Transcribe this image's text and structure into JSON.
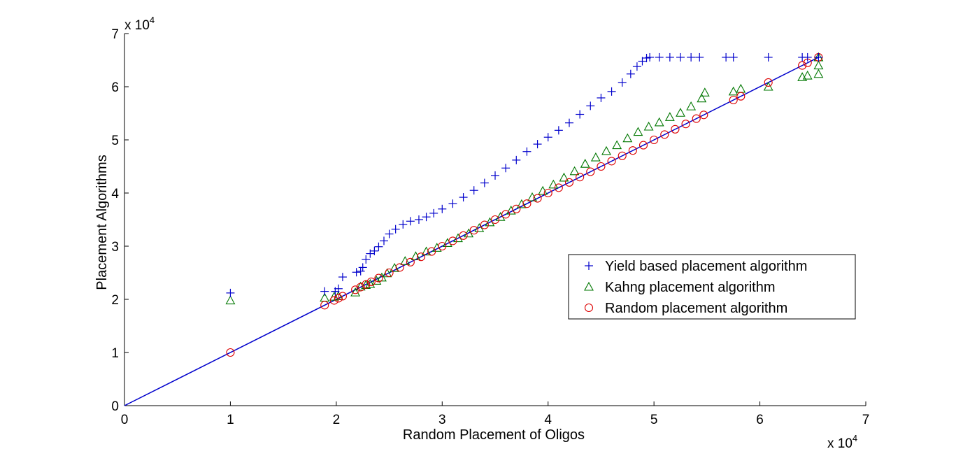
{
  "chart_data": {
    "type": "scatter",
    "title": "",
    "xlabel": "Random Placement of Oligos",
    "ylabel": "Placement Algorithms",
    "x_exponent_label": "x 10",
    "x_exponent_power": "4",
    "y_exponent_label": "x 10",
    "y_exponent_power": "4",
    "xlim": [
      0,
      70000
    ],
    "ylim": [
      0,
      70000
    ],
    "xticks": [
      0,
      10000,
      20000,
      30000,
      40000,
      50000,
      60000,
      70000
    ],
    "xtick_labels": [
      "0",
      "1",
      "2",
      "3",
      "4",
      "5",
      "6",
      "7"
    ],
    "yticks": [
      0,
      10000,
      20000,
      30000,
      40000,
      50000,
      60000,
      70000
    ],
    "ytick_labels": [
      "0",
      "1",
      "2",
      "3",
      "4",
      "5",
      "6",
      "7"
    ],
    "grid": false,
    "legend_position": "center-right",
    "reference_line": {
      "x": [
        0,
        65536
      ],
      "y": [
        0,
        65536
      ],
      "color": "#0000cc"
    },
    "series": [
      {
        "name": "Yield based placement algorithm",
        "marker": "plus",
        "color": "#0000cc",
        "points": [
          [
            10000,
            21200
          ],
          [
            18900,
            21500
          ],
          [
            19900,
            21500
          ],
          [
            20200,
            22000
          ],
          [
            20600,
            24200
          ],
          [
            21900,
            25100
          ],
          [
            22300,
            25300
          ],
          [
            22500,
            26000
          ],
          [
            22800,
            27500
          ],
          [
            23200,
            28600
          ],
          [
            23600,
            29100
          ],
          [
            24000,
            29900
          ],
          [
            24500,
            31000
          ],
          [
            25000,
            32300
          ],
          [
            25600,
            33200
          ],
          [
            26300,
            34100
          ],
          [
            27000,
            34700
          ],
          [
            27800,
            35000
          ],
          [
            28500,
            35500
          ],
          [
            29200,
            36200
          ],
          [
            30000,
            37000
          ],
          [
            31000,
            38000
          ],
          [
            32000,
            39200
          ],
          [
            33000,
            40500
          ],
          [
            34000,
            41900
          ],
          [
            35000,
            43300
          ],
          [
            36000,
            44700
          ],
          [
            37000,
            46200
          ],
          [
            38000,
            47800
          ],
          [
            39000,
            49200
          ],
          [
            40000,
            50500
          ],
          [
            41000,
            51800
          ],
          [
            42000,
            53200
          ],
          [
            43000,
            54800
          ],
          [
            44000,
            56400
          ],
          [
            45000,
            57900
          ],
          [
            46000,
            59100
          ],
          [
            47000,
            60800
          ],
          [
            47800,
            62400
          ],
          [
            48400,
            63800
          ],
          [
            48900,
            64800
          ],
          [
            49300,
            65400
          ],
          [
            49600,
            65536
          ],
          [
            50500,
            65536
          ],
          [
            51500,
            65536
          ],
          [
            52500,
            65536
          ],
          [
            53500,
            65536
          ],
          [
            54300,
            65536
          ],
          [
            56800,
            65536
          ],
          [
            57500,
            65536
          ],
          [
            60800,
            65536
          ],
          [
            64000,
            65536
          ],
          [
            64500,
            65536
          ],
          [
            65536,
            65536
          ]
        ]
      },
      {
        "name": "Kahng placement algorithm",
        "marker": "triangle",
        "color": "#007700",
        "points": [
          [
            10000,
            19800
          ],
          [
            18900,
            20300
          ],
          [
            19800,
            20500
          ],
          [
            20200,
            20600
          ],
          [
            21800,
            21300
          ],
          [
            22300,
            22400
          ],
          [
            22800,
            22700
          ],
          [
            23200,
            22900
          ],
          [
            23800,
            23500
          ],
          [
            24300,
            24100
          ],
          [
            24800,
            24900
          ],
          [
            25500,
            25900
          ],
          [
            26500,
            27200
          ],
          [
            27500,
            28100
          ],
          [
            28500,
            29000
          ],
          [
            29500,
            29700
          ],
          [
            30500,
            30600
          ],
          [
            31500,
            31500
          ],
          [
            32500,
            32400
          ],
          [
            33500,
            33400
          ],
          [
            34500,
            34500
          ],
          [
            35500,
            35500
          ],
          [
            36500,
            36700
          ],
          [
            37500,
            37900
          ],
          [
            38500,
            39200
          ],
          [
            39500,
            40400
          ],
          [
            40500,
            41600
          ],
          [
            41500,
            42900
          ],
          [
            42500,
            44100
          ],
          [
            43500,
            45500
          ],
          [
            44500,
            46700
          ],
          [
            45500,
            47900
          ],
          [
            46500,
            49000
          ],
          [
            47500,
            50300
          ],
          [
            48500,
            51500
          ],
          [
            49500,
            52500
          ],
          [
            50500,
            53300
          ],
          [
            51500,
            54300
          ],
          [
            52500,
            55100
          ],
          [
            53500,
            56300
          ],
          [
            54500,
            57800
          ],
          [
            54800,
            58900
          ],
          [
            57500,
            59100
          ],
          [
            58200,
            59600
          ],
          [
            60800,
            60000
          ],
          [
            64000,
            61800
          ],
          [
            64500,
            62100
          ],
          [
            65536,
            62400
          ],
          [
            65536,
            64000
          ],
          [
            65536,
            65536
          ]
        ]
      },
      {
        "name": "Random placement algorithm",
        "marker": "circle",
        "color": "#dd0000",
        "points": [
          [
            10000,
            10000
          ],
          [
            18900,
            18900
          ],
          [
            19800,
            19800
          ],
          [
            20200,
            20200
          ],
          [
            20600,
            20600
          ],
          [
            21800,
            21800
          ],
          [
            22300,
            22300
          ],
          [
            22800,
            22800
          ],
          [
            23300,
            23300
          ],
          [
            24000,
            24000
          ],
          [
            25000,
            25000
          ],
          [
            26000,
            26000
          ],
          [
            27000,
            27000
          ],
          [
            28000,
            28000
          ],
          [
            29000,
            29000
          ],
          [
            30000,
            30000
          ],
          [
            31000,
            31000
          ],
          [
            32000,
            32000
          ],
          [
            33000,
            33000
          ],
          [
            34000,
            34000
          ],
          [
            35000,
            35000
          ],
          [
            36000,
            36000
          ],
          [
            37000,
            37000
          ],
          [
            38000,
            38000
          ],
          [
            39000,
            39000
          ],
          [
            40000,
            40000
          ],
          [
            41000,
            41000
          ],
          [
            42000,
            42000
          ],
          [
            43000,
            43000
          ],
          [
            44000,
            44000
          ],
          [
            45000,
            45000
          ],
          [
            46000,
            46000
          ],
          [
            47000,
            47000
          ],
          [
            48000,
            48000
          ],
          [
            49000,
            49000
          ],
          [
            50000,
            50000
          ],
          [
            51000,
            51000
          ],
          [
            52000,
            52000
          ],
          [
            53000,
            53000
          ],
          [
            54000,
            54000
          ],
          [
            54700,
            54700
          ],
          [
            57500,
            57500
          ],
          [
            58200,
            58200
          ],
          [
            60800,
            60800
          ],
          [
            64000,
            64000
          ],
          [
            64500,
            64500
          ],
          [
            65536,
            65536
          ]
        ]
      }
    ]
  }
}
